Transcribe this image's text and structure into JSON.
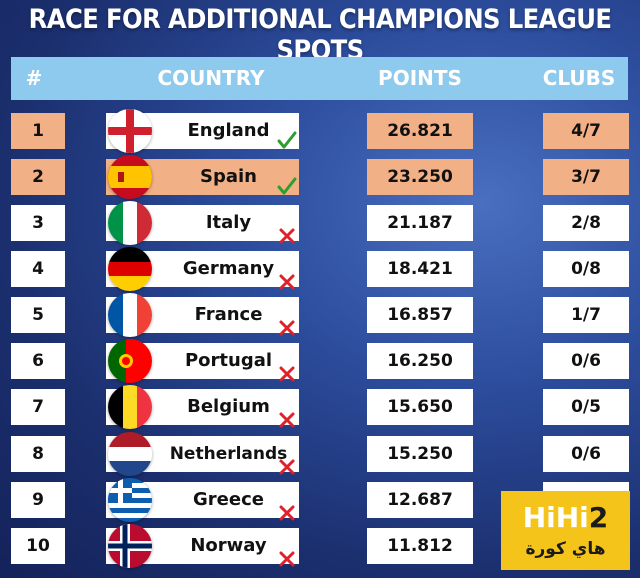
{
  "title": "RACE FOR ADDITIONAL CHAMPIONS LEAGUE SPOTS",
  "headers": {
    "rank": "#",
    "country": "COUNTRY",
    "points": "POINTS",
    "clubs": "CLUBS"
  },
  "rows": [
    {
      "rank": "1",
      "country": "England",
      "points": "26.821",
      "clubs": "4/7",
      "status": "qualified",
      "flag": "england-flag-icon"
    },
    {
      "rank": "2",
      "country": "Spain",
      "points": "23.250",
      "clubs": "3/7",
      "status": "qualified",
      "flag": "spain-flag-icon"
    },
    {
      "rank": "3",
      "country": "Italy",
      "points": "21.187",
      "clubs": "2/8",
      "status": "not-qualified",
      "flag": "italy-flag-icon"
    },
    {
      "rank": "4",
      "country": "Germany",
      "points": "18.421",
      "clubs": "0/8",
      "status": "not-qualified",
      "flag": "germany-flag-icon"
    },
    {
      "rank": "5",
      "country": "France",
      "points": "16.857",
      "clubs": "1/7",
      "status": "not-qualified",
      "flag": "france-flag-icon"
    },
    {
      "rank": "6",
      "country": "Portugal",
      "points": "16.250",
      "clubs": "0/6",
      "status": "not-qualified",
      "flag": "portugal-flag-icon"
    },
    {
      "rank": "7",
      "country": "Belgium",
      "points": "15.650",
      "clubs": "0/5",
      "status": "not-qualified",
      "flag": "belgium-flag-icon"
    },
    {
      "rank": "8",
      "country": "Netherlands",
      "points": "15.250",
      "clubs": "0/6",
      "status": "not-qualified",
      "flag": "netherlands-flag-icon"
    },
    {
      "rank": "9",
      "country": "Greece",
      "points": "12.687",
      "clubs": "",
      "status": "not-qualified",
      "flag": "greece-flag-icon"
    },
    {
      "rank": "10",
      "country": "Norway",
      "points": "11.812",
      "clubs": "",
      "status": "not-qualified",
      "flag": "norway-flag-icon"
    }
  ],
  "logo": {
    "line1a": "HiHi",
    "line1b": "2",
    "line2": "هاي كورة"
  },
  "colors": {
    "header": "#8ec9ee",
    "qualified_row": "#f1b086",
    "check": "#2e9e2e",
    "cross": "#e0202a",
    "logo": "#f5c41b"
  }
}
